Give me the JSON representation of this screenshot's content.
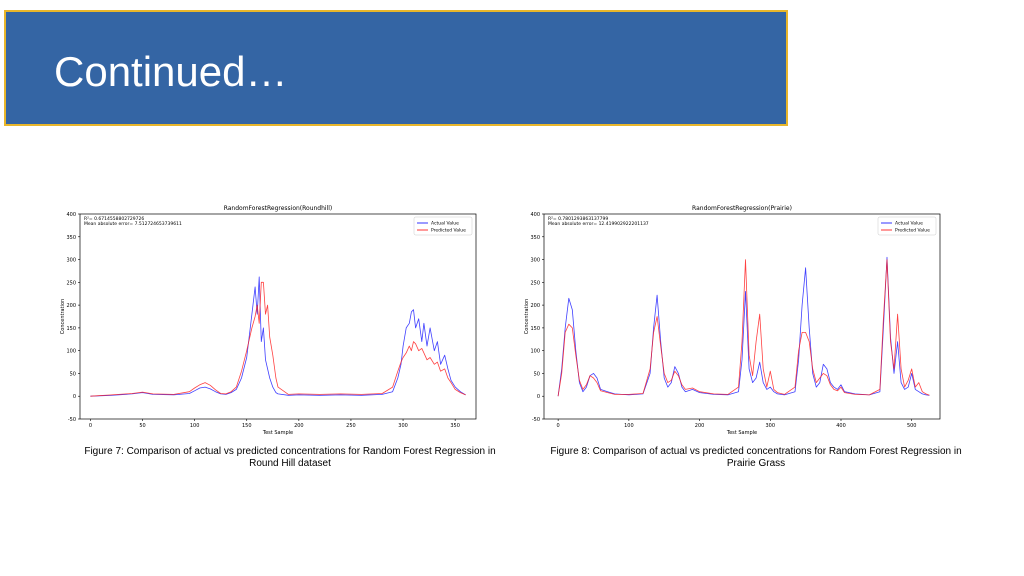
{
  "slide": {
    "title": "Continued…",
    "caption_left": "Figure 7: Comparison of actual vs predicted concentrations for Random Forest Regression in Round Hill dataset",
    "caption_right": "Figure 8: Comparison of actual vs predicted concentrations for Random Forest Regression in Prairie Grass",
    "colors": {
      "title_bg": "#3465a4",
      "title_border": "#e8b62b",
      "actual": "#1f1fff",
      "predicted": "#ff2020"
    }
  },
  "chart_data": [
    {
      "type": "line",
      "title": "RandomForestRegression(Roundhill)",
      "xlabel": "Test Sample",
      "ylabel": "Concentration",
      "stats": [
        "R²= 0.6714558802729726",
        "Mean absolute error= 7.512724653739611"
      ],
      "legend": "top-right",
      "xlim": [
        -10,
        370
      ],
      "ylim": [
        -50,
        400
      ],
      "xticks": [
        0,
        50,
        100,
        150,
        200,
        250,
        300,
        350
      ],
      "yticks": [
        -50,
        0,
        50,
        100,
        150,
        200,
        250,
        300,
        350,
        400
      ],
      "series": [
        {
          "name": "Actual Value",
          "color": "#1f1fff",
          "points": [
            [
              0,
              0
            ],
            [
              20,
              2
            ],
            [
              40,
              5
            ],
            [
              50,
              8
            ],
            [
              60,
              4
            ],
            [
              80,
              3
            ],
            [
              95,
              6
            ],
            [
              100,
              12
            ],
            [
              105,
              18
            ],
            [
              110,
              20
            ],
            [
              115,
              16
            ],
            [
              120,
              10
            ],
            [
              125,
              5
            ],
            [
              130,
              4
            ],
            [
              135,
              8
            ],
            [
              140,
              15
            ],
            [
              145,
              40
            ],
            [
              150,
              85
            ],
            [
              155,
              180
            ],
            [
              158,
              240
            ],
            [
              160,
              180
            ],
            [
              162,
              262
            ],
            [
              164,
              120
            ],
            [
              166,
              150
            ],
            [
              168,
              80
            ],
            [
              170,
              60
            ],
            [
              172,
              40
            ],
            [
              175,
              20
            ],
            [
              178,
              8
            ],
            [
              180,
              5
            ],
            [
              190,
              2
            ],
            [
              200,
              3
            ],
            [
              220,
              2
            ],
            [
              240,
              3
            ],
            [
              260,
              2
            ],
            [
              280,
              4
            ],
            [
              290,
              10
            ],
            [
              295,
              40
            ],
            [
              298,
              70
            ],
            [
              300,
              110
            ],
            [
              303,
              150
            ],
            [
              306,
              160
            ],
            [
              308,
              185
            ],
            [
              310,
              190
            ],
            [
              312,
              150
            ],
            [
              315,
              170
            ],
            [
              318,
              120
            ],
            [
              320,
              160
            ],
            [
              323,
              110
            ],
            [
              326,
              150
            ],
            [
              330,
              100
            ],
            [
              333,
              120
            ],
            [
              336,
              70
            ],
            [
              340,
              90
            ],
            [
              343,
              60
            ],
            [
              346,
              35
            ],
            [
              350,
              20
            ],
            [
              355,
              10
            ],
            [
              360,
              3
            ]
          ]
        },
        {
          "name": "Predicted Value",
          "color": "#ff2020",
          "points": [
            [
              0,
              0
            ],
            [
              20,
              3
            ],
            [
              40,
              6
            ],
            [
              50,
              9
            ],
            [
              60,
              5
            ],
            [
              80,
              4
            ],
            [
              95,
              10
            ],
            [
              100,
              18
            ],
            [
              105,
              25
            ],
            [
              110,
              30
            ],
            [
              115,
              24
            ],
            [
              120,
              14
            ],
            [
              125,
              6
            ],
            [
              130,
              5
            ],
            [
              135,
              10
            ],
            [
              140,
              20
            ],
            [
              145,
              55
            ],
            [
              150,
              100
            ],
            [
              155,
              150
            ],
            [
              158,
              175
            ],
            [
              160,
              200
            ],
            [
              162,
              160
            ],
            [
              164,
              250
            ],
            [
              166,
              250
            ],
            [
              168,
              180
            ],
            [
              170,
              200
            ],
            [
              172,
              130
            ],
            [
              175,
              90
            ],
            [
              178,
              40
            ],
            [
              180,
              20
            ],
            [
              190,
              4
            ],
            [
              200,
              5
            ],
            [
              220,
              4
            ],
            [
              240,
              5
            ],
            [
              260,
              4
            ],
            [
              280,
              6
            ],
            [
              290,
              20
            ],
            [
              295,
              55
            ],
            [
              298,
              75
            ],
            [
              300,
              85
            ],
            [
              303,
              95
            ],
            [
              306,
              110
            ],
            [
              308,
              100
            ],
            [
              310,
              120
            ],
            [
              312,
              115
            ],
            [
              315,
              100
            ],
            [
              318,
              105
            ],
            [
              320,
              95
            ],
            [
              323,
              80
            ],
            [
              326,
              85
            ],
            [
              330,
              70
            ],
            [
              333,
              75
            ],
            [
              336,
              55
            ],
            [
              340,
              60
            ],
            [
              343,
              40
            ],
            [
              346,
              30
            ],
            [
              350,
              15
            ],
            [
              355,
              8
            ],
            [
              360,
              3
            ]
          ]
        }
      ]
    },
    {
      "type": "line",
      "title": "RandomForestRegression(Prairie)",
      "xlabel": "Test Sample",
      "ylabel": "Concentration",
      "stats": [
        "R²= 0.7801293863137799",
        "Mean absolute error= 12.419902922201137"
      ],
      "legend": "top-right",
      "xlim": [
        -20,
        540
      ],
      "ylim": [
        -50,
        400
      ],
      "xticks": [
        0,
        100,
        200,
        300,
        400,
        500
      ],
      "yticks": [
        -50,
        0,
        50,
        100,
        150,
        200,
        250,
        300,
        350,
        400
      ],
      "series": [
        {
          "name": "Actual Value",
          "color": "#1f1fff",
          "points": [
            [
              0,
              0
            ],
            [
              5,
              60
            ],
            [
              10,
              150
            ],
            [
              15,
              215
            ],
            [
              20,
              190
            ],
            [
              25,
              100
            ],
            [
              30,
              30
            ],
            [
              35,
              10
            ],
            [
              40,
              20
            ],
            [
              45,
              45
            ],
            [
              50,
              50
            ],
            [
              55,
              40
            ],
            [
              60,
              15
            ],
            [
              70,
              10
            ],
            [
              80,
              5
            ],
            [
              100,
              3
            ],
            [
              120,
              5
            ],
            [
              130,
              50
            ],
            [
              135,
              150
            ],
            [
              140,
              222
            ],
            [
              145,
              120
            ],
            [
              150,
              40
            ],
            [
              155,
              20
            ],
            [
              160,
              30
            ],
            [
              165,
              65
            ],
            [
              170,
              50
            ],
            [
              175,
              20
            ],
            [
              180,
              10
            ],
            [
              190,
              15
            ],
            [
              200,
              8
            ],
            [
              220,
              4
            ],
            [
              240,
              3
            ],
            [
              255,
              10
            ],
            [
              260,
              80
            ],
            [
              265,
              230
            ],
            [
              270,
              60
            ],
            [
              275,
              30
            ],
            [
              280,
              40
            ],
            [
              285,
              75
            ],
            [
              290,
              30
            ],
            [
              295,
              15
            ],
            [
              300,
              20
            ],
            [
              305,
              10
            ],
            [
              310,
              5
            ],
            [
              320,
              3
            ],
            [
              335,
              10
            ],
            [
              340,
              80
            ],
            [
              345,
              200
            ],
            [
              350,
              282
            ],
            [
              355,
              150
            ],
            [
              360,
              50
            ],
            [
              365,
              20
            ],
            [
              370,
              30
            ],
            [
              375,
              70
            ],
            [
              380,
              60
            ],
            [
              385,
              30
            ],
            [
              390,
              20
            ],
            [
              395,
              15
            ],
            [
              400,
              25
            ],
            [
              405,
              10
            ],
            [
              420,
              5
            ],
            [
              440,
              3
            ],
            [
              455,
              10
            ],
            [
              460,
              150
            ],
            [
              465,
              305
            ],
            [
              470,
              130
            ],
            [
              475,
              50
            ],
            [
              480,
              120
            ],
            [
              485,
              30
            ],
            [
              490,
              15
            ],
            [
              495,
              20
            ],
            [
              500,
              50
            ],
            [
              505,
              15
            ],
            [
              510,
              10
            ],
            [
              515,
              5
            ],
            [
              520,
              3
            ],
            [
              525,
              2
            ]
          ]
        },
        {
          "name": "Predicted Value",
          "color": "#ff2020",
          "points": [
            [
              0,
              0
            ],
            [
              5,
              50
            ],
            [
              10,
              140
            ],
            [
              15,
              158
            ],
            [
              20,
              150
            ],
            [
              25,
              90
            ],
            [
              30,
              35
            ],
            [
              35,
              15
            ],
            [
              40,
              25
            ],
            [
              45,
              45
            ],
            [
              50,
              40
            ],
            [
              55,
              30
            ],
            [
              60,
              12
            ],
            [
              70,
              8
            ],
            [
              80,
              4
            ],
            [
              100,
              4
            ],
            [
              120,
              6
            ],
            [
              130,
              60
            ],
            [
              135,
              140
            ],
            [
              140,
              175
            ],
            [
              145,
              110
            ],
            [
              150,
              50
            ],
            [
              155,
              30
            ],
            [
              160,
              35
            ],
            [
              165,
              55
            ],
            [
              170,
              45
            ],
            [
              175,
              25
            ],
            [
              180,
              15
            ],
            [
              190,
              18
            ],
            [
              200,
              10
            ],
            [
              220,
              5
            ],
            [
              240,
              4
            ],
            [
              255,
              20
            ],
            [
              260,
              120
            ],
            [
              265,
              300
            ],
            [
              270,
              90
            ],
            [
              275,
              45
            ],
            [
              280,
              120
            ],
            [
              285,
              180
            ],
            [
              290,
              60
            ],
            [
              295,
              20
            ],
            [
              300,
              55
            ],
            [
              305,
              15
            ],
            [
              310,
              8
            ],
            [
              320,
              4
            ],
            [
              335,
              20
            ],
            [
              340,
              100
            ],
            [
              345,
              140
            ],
            [
              350,
              140
            ],
            [
              355,
              120
            ],
            [
              360,
              60
            ],
            [
              365,
              30
            ],
            [
              370,
              40
            ],
            [
              375,
              50
            ],
            [
              380,
              45
            ],
            [
              385,
              25
            ],
            [
              390,
              15
            ],
            [
              395,
              12
            ],
            [
              400,
              20
            ],
            [
              405,
              8
            ],
            [
              420,
              4
            ],
            [
              440,
              3
            ],
            [
              455,
              15
            ],
            [
              460,
              170
            ],
            [
              465,
              300
            ],
            [
              470,
              120
            ],
            [
              475,
              60
            ],
            [
              480,
              180
            ],
            [
              485,
              60
            ],
            [
              490,
              20
            ],
            [
              495,
              35
            ],
            [
              500,
              60
            ],
            [
              505,
              20
            ],
            [
              510,
              30
            ],
            [
              515,
              10
            ],
            [
              520,
              5
            ],
            [
              525,
              2
            ]
          ]
        }
      ]
    }
  ]
}
